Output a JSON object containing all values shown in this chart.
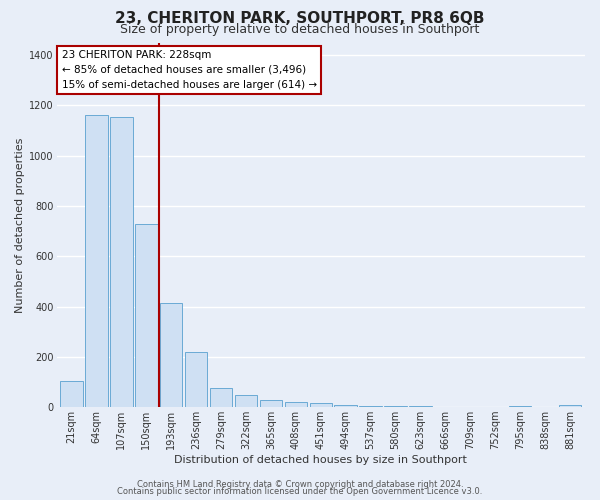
{
  "title": "23, CHERITON PARK, SOUTHPORT, PR8 6QB",
  "subtitle": "Size of property relative to detached houses in Southport",
  "xlabel": "Distribution of detached houses by size in Southport",
  "ylabel": "Number of detached properties",
  "bar_labels": [
    "21sqm",
    "64sqm",
    "107sqm",
    "150sqm",
    "193sqm",
    "236sqm",
    "279sqm",
    "322sqm",
    "365sqm",
    "408sqm",
    "451sqm",
    "494sqm",
    "537sqm",
    "580sqm",
    "623sqm",
    "666sqm",
    "709sqm",
    "752sqm",
    "795sqm",
    "838sqm",
    "881sqm"
  ],
  "bar_heights": [
    105,
    1160,
    1155,
    730,
    415,
    220,
    75,
    50,
    30,
    20,
    15,
    8,
    5,
    5,
    5,
    2,
    0,
    0,
    5,
    0,
    8
  ],
  "bar_color": "#cfe0f3",
  "bar_edge_color": "#6aaad4",
  "red_line_x": 3.5,
  "annotation_text": "23 CHERITON PARK: 228sqm\n← 85% of detached houses are smaller (3,496)\n15% of semi-detached houses are larger (614) →",
  "annotation_box_color": "#ffffff",
  "annotation_box_edge": "#aa0000",
  "red_line_color": "#aa0000",
  "ylim": [
    0,
    1450
  ],
  "yticks": [
    0,
    200,
    400,
    600,
    800,
    1000,
    1200,
    1400
  ],
  "footer_line1": "Contains HM Land Registry data © Crown copyright and database right 2024.",
  "footer_line2": "Contains public sector information licensed under the Open Government Licence v3.0.",
  "bg_color": "#e8eef8",
  "plot_bg_color": "#e8eef8",
  "grid_color": "#ffffff",
  "title_fontsize": 11,
  "subtitle_fontsize": 9,
  "axis_label_fontsize": 8,
  "tick_fontsize": 7,
  "annotation_fontsize": 7.5,
  "footer_fontsize": 6
}
